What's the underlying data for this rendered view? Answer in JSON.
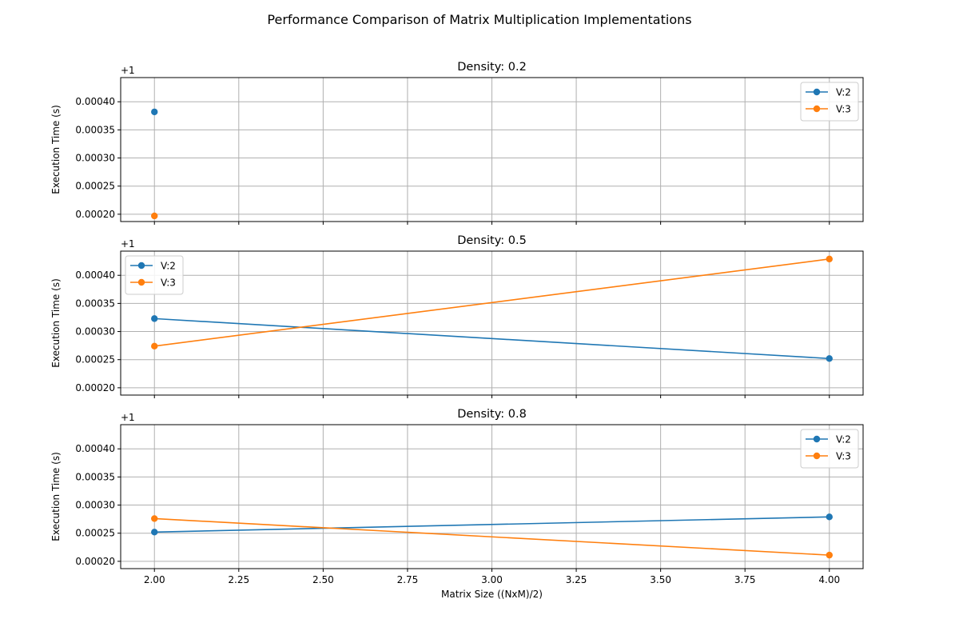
{
  "figure": {
    "suptitle": "Performance Comparison of Matrix Multiplication Implementations"
  },
  "chart_data": [
    {
      "type": "line",
      "title": "Density: 0.2",
      "xlabel": "",
      "ylabel": "Execution Time (s)",
      "y_offset_label": "+1",
      "xlim": [
        1.9,
        4.1
      ],
      "ylim": [
        1.000187,
        1.000443
      ],
      "xticks": [
        2.0,
        2.25,
        2.5,
        2.75,
        3.0,
        3.25,
        3.5,
        3.75,
        4.0
      ],
      "yticks": [
        0.0002,
        0.00025,
        0.0003,
        0.00035,
        0.0004
      ],
      "ytick_labels": [
        "0.00020",
        "0.00025",
        "0.00030",
        "0.00035",
        "0.00040"
      ],
      "show_xtick_labels": false,
      "grid": true,
      "legend": "upper-right",
      "series": [
        {
          "name": "V:2",
          "color": "#1f77b4",
          "points": [
            [
              2.0,
              1.000382
            ]
          ]
        },
        {
          "name": "V:3",
          "color": "#ff7f0e",
          "points": [
            [
              2.0,
              1.000197
            ]
          ]
        }
      ]
    },
    {
      "type": "line",
      "title": "Density: 0.5",
      "xlabel": "",
      "ylabel": "Execution Time (s)",
      "y_offset_label": "+1",
      "xlim": [
        1.9,
        4.1
      ],
      "ylim": [
        1.000187,
        1.000443
      ],
      "xticks": [
        2.0,
        2.25,
        2.5,
        2.75,
        3.0,
        3.25,
        3.5,
        3.75,
        4.0
      ],
      "yticks": [
        0.0002,
        0.00025,
        0.0003,
        0.00035,
        0.0004
      ],
      "ytick_labels": [
        "0.00020",
        "0.00025",
        "0.00030",
        "0.00035",
        "0.00040"
      ],
      "show_xtick_labels": false,
      "grid": true,
      "legend": "upper-left",
      "series": [
        {
          "name": "V:2",
          "color": "#1f77b4",
          "points": [
            [
              2.0,
              1.000323
            ],
            [
              4.0,
              1.000252
            ]
          ]
        },
        {
          "name": "V:3",
          "color": "#ff7f0e",
          "points": [
            [
              2.0,
              1.000274
            ],
            [
              4.0,
              1.000429
            ]
          ]
        }
      ]
    },
    {
      "type": "line",
      "title": "Density: 0.8",
      "xlabel": "Matrix Size ((NxM)/2)",
      "ylabel": "Execution Time (s)",
      "y_offset_label": "+1",
      "xlim": [
        1.9,
        4.1
      ],
      "ylim": [
        1.000187,
        1.000443
      ],
      "xticks": [
        2.0,
        2.25,
        2.5,
        2.75,
        3.0,
        3.25,
        3.5,
        3.75,
        4.0
      ],
      "xtick_labels": [
        "2.00",
        "2.25",
        "2.50",
        "2.75",
        "3.00",
        "3.25",
        "3.50",
        "3.75",
        "4.00"
      ],
      "yticks": [
        0.0002,
        0.00025,
        0.0003,
        0.00035,
        0.0004
      ],
      "ytick_labels": [
        "0.00020",
        "0.00025",
        "0.00030",
        "0.00035",
        "0.00040"
      ],
      "show_xtick_labels": true,
      "grid": true,
      "legend": "upper-right",
      "series": [
        {
          "name": "V:2",
          "color": "#1f77b4",
          "points": [
            [
              2.0,
              1.000252
            ],
            [
              4.0,
              1.000279
            ]
          ]
        },
        {
          "name": "V:3",
          "color": "#ff7f0e",
          "points": [
            [
              2.0,
              1.000276
            ],
            [
              4.0,
              1.000211
            ]
          ]
        }
      ]
    }
  ]
}
